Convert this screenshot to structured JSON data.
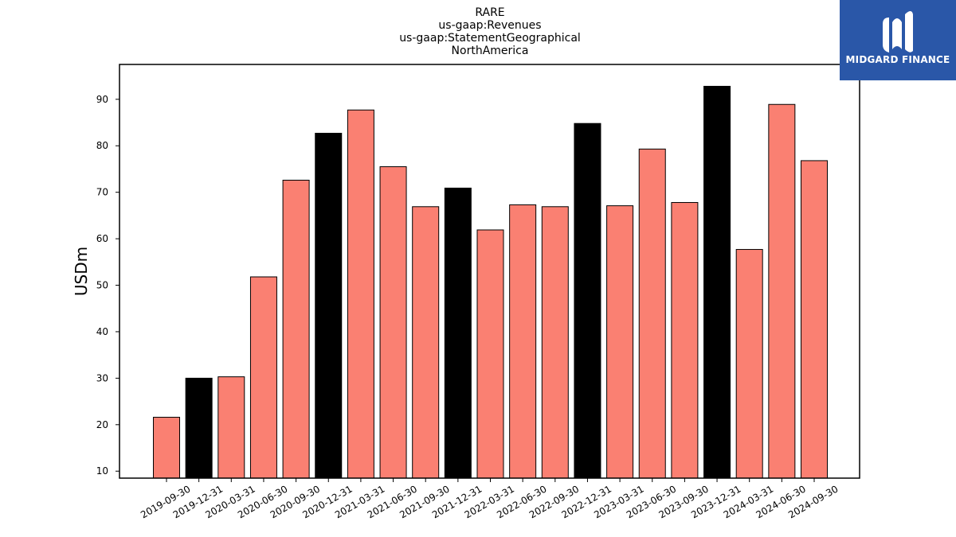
{
  "chart_data": {
    "type": "bar",
    "title_lines": [
      "RARE",
      "us-gaap:Revenues",
      "us-gaap:StatementGeographical",
      "NorthAmerica"
    ],
    "xlabel": "",
    "ylabel": "USDm",
    "ylim": [
      8.5,
      97.5
    ],
    "yticks": [
      10,
      20,
      30,
      40,
      50,
      60,
      70,
      80,
      90
    ],
    "grid": false,
    "legend": "none",
    "categories": [
      "2019-09-30",
      "2019-12-31",
      "2020-03-31",
      "2020-06-30",
      "2020-09-30",
      "2020-12-31",
      "2021-03-31",
      "2021-06-30",
      "2021-09-30",
      "2021-12-31",
      "2022-03-31",
      "2022-06-30",
      "2022-09-30",
      "2022-12-31",
      "2023-03-31",
      "2023-06-30",
      "2023-09-30",
      "2023-12-31",
      "2024-03-31",
      "2024-06-30",
      "2024-09-30"
    ],
    "values": [
      21.6,
      30.0,
      30.3,
      51.8,
      72.6,
      82.7,
      87.7,
      75.5,
      66.9,
      70.9,
      61.9,
      67.3,
      66.9,
      84.8,
      67.1,
      79.3,
      67.8,
      92.8,
      57.7,
      88.9,
      76.8
    ],
    "colors": [
      "#fa8072",
      "#000000",
      "#fa8072",
      "#fa8072",
      "#fa8072",
      "#000000",
      "#fa8072",
      "#fa8072",
      "#fa8072",
      "#000000",
      "#fa8072",
      "#fa8072",
      "#fa8072",
      "#000000",
      "#fa8072",
      "#fa8072",
      "#fa8072",
      "#000000",
      "#fa8072",
      "#fa8072",
      "#fa8072"
    ],
    "bar_edge_color": "#000000"
  },
  "logo": {
    "text": "MIDGARD FINANCE",
    "background": "#2a57a8",
    "icon": "midgard-logo-icon"
  }
}
